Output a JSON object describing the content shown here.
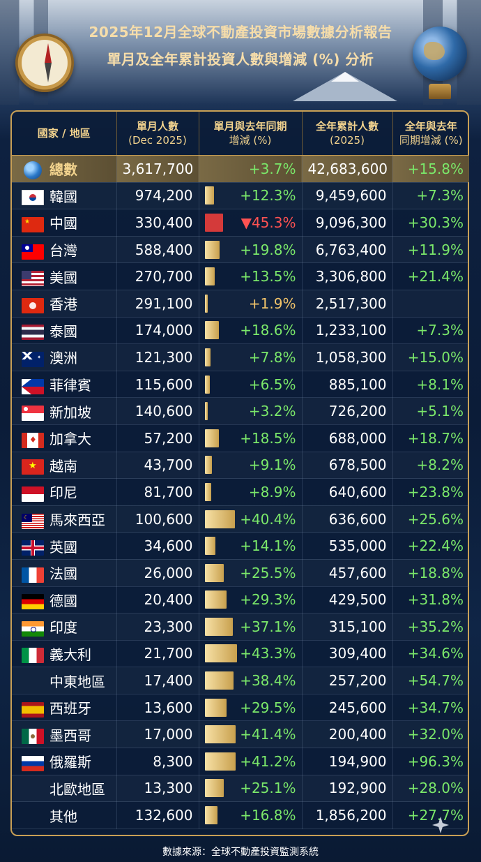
{
  "title": {
    "line1": "2025年12月全球不動產投資市場數據分析報告",
    "line2": "單月及全年累計投資人數與增減 (%) 分析"
  },
  "columns": {
    "country": "國家 / 地區",
    "monthly": [
      "單月人數",
      "(Dec 2025)"
    ],
    "monthly_change": [
      "單月與去年同期",
      "增減 (%)"
    ],
    "annual": [
      "全年累計人數",
      "(2025)"
    ],
    "annual_change": [
      "全年與去年",
      "同期增減 (%)"
    ]
  },
  "colors": {
    "gold": "#c9a055",
    "positive": "#7be86a",
    "negative": "#ff5252",
    "neutral": "#f2c46a"
  },
  "total": {
    "name": "總數",
    "icon": "globe-icon",
    "monthly": "3,617,700",
    "monthly_change": "+3.7%",
    "annual": "42,683,600",
    "annual_change": "+15.8%"
  },
  "rows": [
    {
      "name": "韓國",
      "flag": "kr",
      "monthly": "974,200",
      "monthly_change": "+12.3%",
      "change_value": 12.3,
      "annual": "9,459,600",
      "annual_change": "+7.3%"
    },
    {
      "name": "中國",
      "flag": "cn",
      "monthly": "330,400",
      "monthly_change": "▼45.3%",
      "change_value": -45.3,
      "annual": "9,096,300",
      "annual_change": "+30.3%"
    },
    {
      "name": "台灣",
      "flag": "tw",
      "monthly": "588,400",
      "monthly_change": "+19.8%",
      "change_value": 19.8,
      "annual": "6,763,400",
      "annual_change": "+11.9%"
    },
    {
      "name": "美國",
      "flag": "us",
      "monthly": "270,700",
      "monthly_change": "+13.5%",
      "change_value": 13.5,
      "annual": "3,306,800",
      "annual_change": "+21.4%"
    },
    {
      "name": "香港",
      "flag": "hk",
      "monthly": "291,100",
      "monthly_change": "+1.9%",
      "change_value": 1.9,
      "annual": "2,517,300",
      "annual_change": ""
    },
    {
      "name": "泰國",
      "flag": "th",
      "monthly": "174,000",
      "monthly_change": "+18.6%",
      "change_value": 18.6,
      "annual": "1,233,100",
      "annual_change": "+7.3%"
    },
    {
      "name": "澳洲",
      "flag": "au",
      "monthly": "121,300",
      "monthly_change": "+7.8%",
      "change_value": 7.8,
      "annual": "1,058,300",
      "annual_change": "+15.0%"
    },
    {
      "name": "菲律賓",
      "flag": "ph",
      "monthly": "115,600",
      "monthly_change": "+6.5%",
      "change_value": 6.5,
      "annual": "885,100",
      "annual_change": "+8.1%"
    },
    {
      "name": "新加坡",
      "flag": "sg",
      "monthly": "140,600",
      "monthly_change": "+3.2%",
      "change_value": 3.2,
      "annual": "726,200",
      "annual_change": "+5.1%"
    },
    {
      "name": "加拿大",
      "flag": "ca",
      "monthly": "57,200",
      "monthly_change": "+18.5%",
      "change_value": 18.5,
      "annual": "688,000",
      "annual_change": "+18.7%"
    },
    {
      "name": "越南",
      "flag": "vn",
      "monthly": "43,700",
      "monthly_change": "+9.1%",
      "change_value": 9.1,
      "annual": "678,500",
      "annual_change": "+8.2%"
    },
    {
      "name": "印尼",
      "flag": "id",
      "monthly": "81,700",
      "monthly_change": "+8.9%",
      "change_value": 8.9,
      "annual": "640,600",
      "annual_change": "+23.8%"
    },
    {
      "name": "馬來西亞",
      "flag": "my",
      "monthly": "100,600",
      "monthly_change": "+40.4%",
      "change_value": 40.4,
      "annual": "636,600",
      "annual_change": "+25.6%"
    },
    {
      "name": "英國",
      "flag": "gb",
      "monthly": "34,600",
      "monthly_change": "+14.1%",
      "change_value": 14.1,
      "annual": "535,000",
      "annual_change": "+22.4%"
    },
    {
      "name": "法國",
      "flag": "fr",
      "monthly": "26,000",
      "monthly_change": "+25.5%",
      "change_value": 25.5,
      "annual": "457,600",
      "annual_change": "+18.8%"
    },
    {
      "name": "德國",
      "flag": "de",
      "monthly": "20,400",
      "monthly_change": "+29.3%",
      "change_value": 29.3,
      "annual": "429,500",
      "annual_change": "+31.8%"
    },
    {
      "name": "印度",
      "flag": "in",
      "monthly": "23,300",
      "monthly_change": "+37.1%",
      "change_value": 37.1,
      "annual": "315,100",
      "annual_change": "+35.2%"
    },
    {
      "name": "義大利",
      "flag": "it",
      "monthly": "21,700",
      "monthly_change": "+43.3%",
      "change_value": 43.3,
      "annual": "309,400",
      "annual_change": "+34.6%"
    },
    {
      "name": "中東地區",
      "flag": "",
      "monthly": "17,400",
      "monthly_change": "+38.4%",
      "change_value": 38.4,
      "annual": "257,200",
      "annual_change": "+54.7%"
    },
    {
      "name": "西班牙",
      "flag": "es",
      "monthly": "13,600",
      "monthly_change": "+29.5%",
      "change_value": 29.5,
      "annual": "245,600",
      "annual_change": "+34.7%"
    },
    {
      "name": "墨西哥",
      "flag": "mx",
      "monthly": "17,000",
      "monthly_change": "+41.4%",
      "change_value": 41.4,
      "annual": "200,400",
      "annual_change": "+32.0%"
    },
    {
      "name": "俄羅斯",
      "flag": "ru",
      "monthly": "8,300",
      "monthly_change": "+41.2%",
      "change_value": 41.2,
      "annual": "194,900",
      "annual_change": "+96.3%"
    },
    {
      "name": "北歐地區",
      "flag": "",
      "monthly": "13,300",
      "monthly_change": "+25.1%",
      "change_value": 25.1,
      "annual": "192,900",
      "annual_change": "+28.0%"
    },
    {
      "name": "其他",
      "flag": "",
      "monthly": "132,600",
      "monthly_change": "+16.8%",
      "change_value": 16.8,
      "annual": "1,856,200",
      "annual_change": "+27.7%"
    }
  ],
  "source": "數據來源：全球不動產投資監測系統"
}
